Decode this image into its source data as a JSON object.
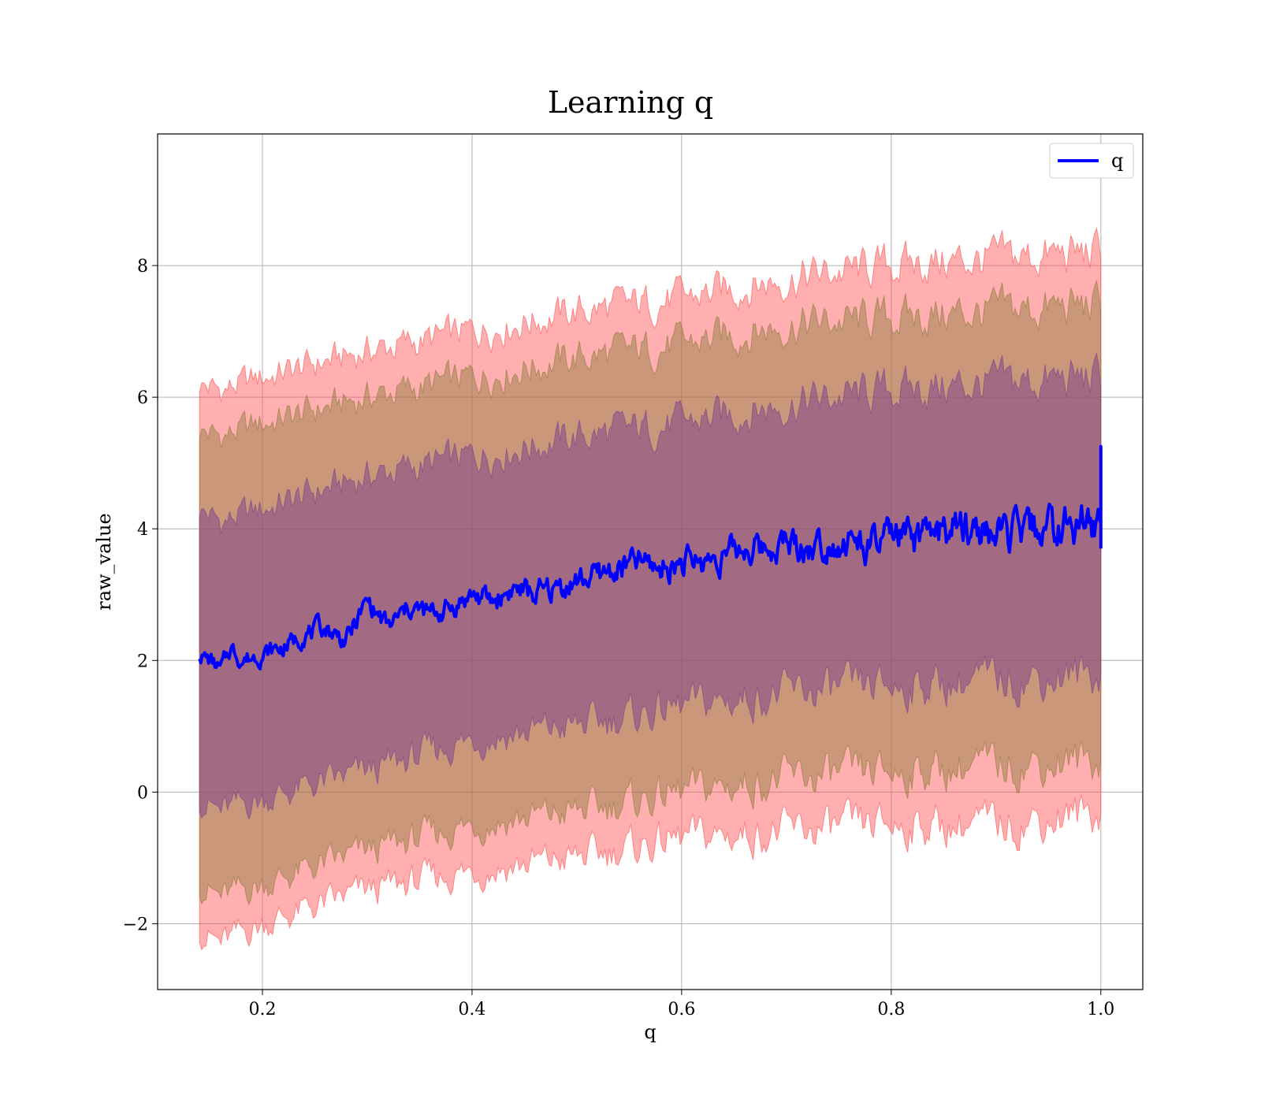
{
  "colors": {
    "line": "#0000ff",
    "band_outer": "#ff4d4d",
    "band_middle": "#8c7a3a",
    "band_inner": "#7a3f8c",
    "grid": "#b0b0b0"
  },
  "chart_data": {
    "type": "area",
    "title": "Learning q",
    "xlabel": "q",
    "ylabel": "raw_value",
    "xlim": [
      0.1,
      1.04
    ],
    "ylim": [
      -3.0,
      10.0
    ],
    "xticks": [
      0.2,
      0.4,
      0.6,
      0.8,
      1.0
    ],
    "xtick_labels": [
      "0.2",
      "0.4",
      "0.6",
      "0.8",
      "1.0"
    ],
    "yticks": [
      -2,
      0,
      2,
      4,
      6,
      8
    ],
    "ytick_labels": [
      "−2",
      "0",
      "2",
      "4",
      "6",
      "8"
    ],
    "grid": true,
    "legend": {
      "position": "top-right",
      "entries": [
        "q"
      ]
    },
    "series": [
      {
        "name": "q",
        "type": "line",
        "x": [
          0.14,
          0.15,
          0.16,
          0.17,
          0.18,
          0.2,
          0.22,
          0.24,
          0.26,
          0.28,
          0.3,
          0.32,
          0.34,
          0.36,
          0.38,
          0.4,
          0.42,
          0.44,
          0.46,
          0.48,
          0.5,
          0.52,
          0.54,
          0.56,
          0.58,
          0.6,
          0.62,
          0.64,
          0.66,
          0.68,
          0.7,
          0.72,
          0.74,
          0.76,
          0.78,
          0.8,
          0.82,
          0.84,
          0.86,
          0.88,
          0.9,
          0.92,
          0.94,
          0.96,
          0.98,
          1.0
        ],
        "y": [
          2.1,
          2.0,
          1.85,
          2.2,
          2.0,
          2.1,
          2.2,
          2.4,
          2.5,
          2.3,
          2.9,
          2.5,
          2.8,
          2.7,
          2.8,
          3.0,
          2.9,
          3.1,
          3.0,
          3.1,
          3.2,
          3.3,
          3.4,
          3.5,
          3.4,
          3.5,
          3.5,
          3.6,
          3.7,
          3.7,
          3.8,
          3.7,
          3.8,
          3.8,
          3.7,
          3.9,
          3.8,
          3.9,
          4.0,
          4.0,
          3.9,
          3.9,
          4.0,
          4.0,
          4.1,
          4.0
        ]
      },
      {
        "name": "",
        "type": "band",
        "level": "outer",
        "x": [
          0.14,
          0.16,
          0.2,
          0.3,
          0.4,
          0.5,
          0.6,
          0.7,
          0.8,
          0.9,
          1.0
        ],
        "lower": [
          -2.1,
          -2.3,
          -2.0,
          -1.5,
          -1.2,
          -1.0,
          -0.7,
          -0.6,
          -0.5,
          -0.5,
          -0.3
        ],
        "upper": [
          6.2,
          6.1,
          6.3,
          6.7,
          7.0,
          7.3,
          7.5,
          7.8,
          8.0,
          8.1,
          8.2
        ]
      },
      {
        "name": "",
        "type": "band",
        "level": "middle",
        "x": [
          0.14,
          0.16,
          0.2,
          0.3,
          0.4,
          0.5,
          0.6,
          0.7,
          0.8,
          0.9,
          1.0
        ],
        "lower": [
          -1.4,
          -1.6,
          -1.4,
          -0.9,
          -0.5,
          -0.3,
          0.0,
          0.2,
          0.3,
          0.4,
          0.5
        ],
        "upper": [
          5.5,
          5.4,
          5.6,
          6.0,
          6.3,
          6.6,
          6.8,
          7.1,
          7.2,
          7.3,
          7.4
        ]
      },
      {
        "name": "",
        "type": "band",
        "level": "inner",
        "x": [
          0.14,
          0.16,
          0.2,
          0.3,
          0.4,
          0.5,
          0.6,
          0.7,
          0.8,
          0.9,
          1.0
        ],
        "lower": [
          -0.1,
          -0.3,
          -0.1,
          0.3,
          0.8,
          1.0,
          1.3,
          1.5,
          1.6,
          1.7,
          1.8
        ],
        "upper": [
          4.3,
          4.1,
          4.3,
          4.8,
          5.1,
          5.4,
          5.6,
          5.9,
          6.1,
          6.2,
          6.3
        ]
      }
    ]
  }
}
